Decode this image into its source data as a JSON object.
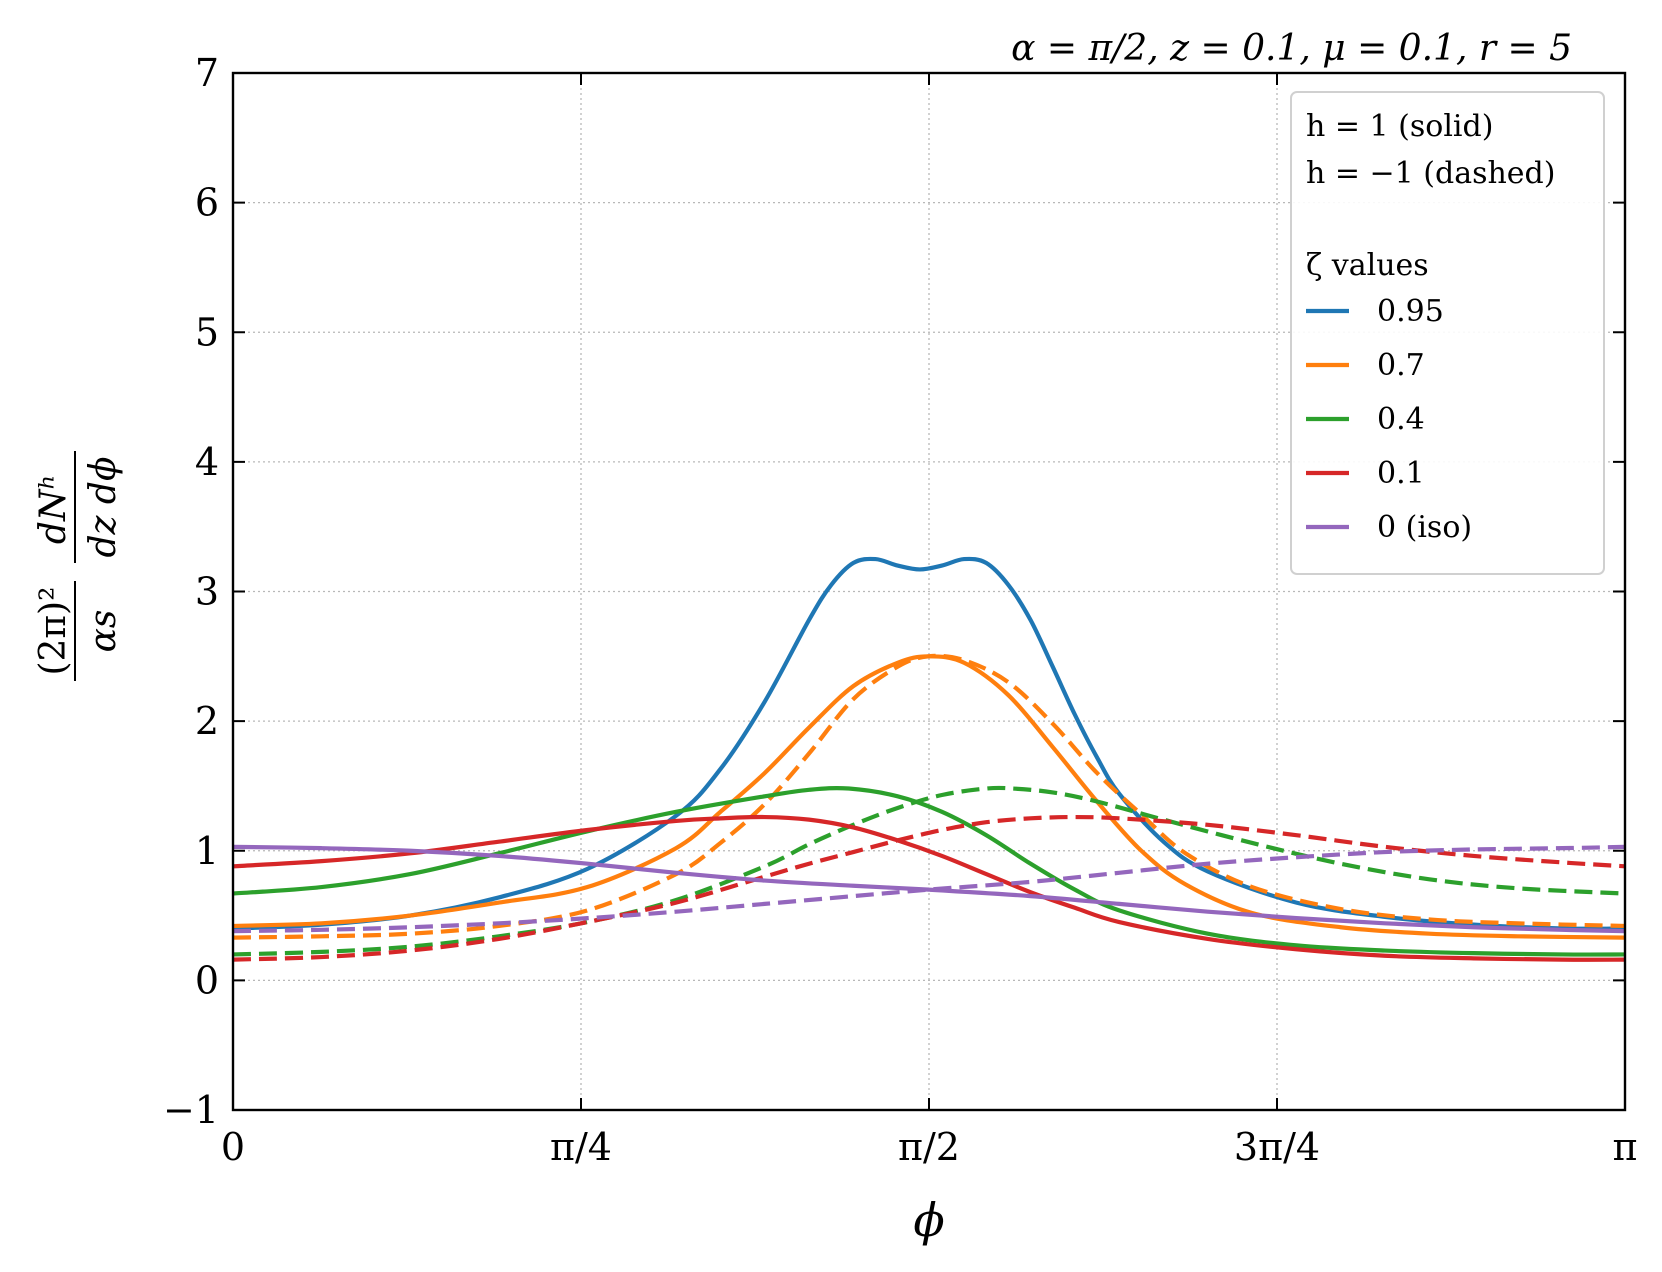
{
  "chart_data": {
    "type": "line",
    "title": "α = π/2, z = 0.1, μ = 0.1, r = 5",
    "xlabel": "ϕ",
    "ylabel_numerator_left": "(2π)²",
    "ylabel_denominator_left": "αs",
    "ylabel_numerator_right": "dNʰ",
    "ylabel_denominator_right": "dz dϕ",
    "xlim": [
      0,
      3.14159
    ],
    "ylim": [
      -1,
      7
    ],
    "x_ticks": [
      {
        "value": 0,
        "label": "0"
      },
      {
        "value": 0.785398,
        "label": "π/4"
      },
      {
        "value": 1.570796,
        "label": "π/2"
      },
      {
        "value": 2.356194,
        "label": "3π/4"
      },
      {
        "value": 3.14159,
        "label": "π"
      }
    ],
    "y_ticks": [
      {
        "value": -1,
        "label": "−1"
      },
      {
        "value": 0,
        "label": "0"
      },
      {
        "value": 1,
        "label": "1"
      },
      {
        "value": 2,
        "label": "2"
      },
      {
        "value": 3,
        "label": "3"
      },
      {
        "value": 4,
        "label": "4"
      },
      {
        "value": 5,
        "label": "5"
      },
      {
        "value": 6,
        "label": "6"
      },
      {
        "value": 7,
        "label": "7"
      }
    ],
    "grid": true,
    "legend": {
      "placement": "top-right",
      "style_lines": [
        "h = 1 (solid)",
        "h = −1 (dashed)"
      ],
      "title": "ζ values",
      "entries": [
        {
          "label": "0.95",
          "color": "#1f77b4"
        },
        {
          "label": "0.7",
          "color": "#ff7f0e"
        },
        {
          "label": "0.4",
          "color": "#2ca02c"
        },
        {
          "label": "0.1",
          "color": "#d62728"
        },
        {
          "label": "0 (iso)",
          "color": "#9467bd"
        }
      ]
    },
    "series": [
      {
        "name": "ζ=0.95, h=1",
        "color": "#1f77b4",
        "dash": false,
        "x": [
          0,
          0.2,
          0.4,
          0.6,
          0.8,
          1.0,
          1.1,
          1.2,
          1.3,
          1.35,
          1.4,
          1.45,
          1.5,
          1.55,
          1.6,
          1.65,
          1.7,
          1.75,
          1.8,
          1.85,
          1.9,
          1.95,
          2.0,
          2.1,
          2.2,
          2.4,
          2.6,
          2.8,
          3.0,
          3.14159
        ],
        "y": [
          0.4,
          0.43,
          0.5,
          0.64,
          0.86,
          1.27,
          1.63,
          2.15,
          2.78,
          3.05,
          3.22,
          3.25,
          3.2,
          3.17,
          3.2,
          3.25,
          3.22,
          3.05,
          2.78,
          2.42,
          2.05,
          1.72,
          1.44,
          1.07,
          0.84,
          0.6,
          0.49,
          0.43,
          0.4,
          0.4
        ]
      },
      {
        "name": "ζ=0.7, h=1",
        "color": "#ff7f0e",
        "dash": false,
        "x": [
          0,
          0.2,
          0.4,
          0.6,
          0.8,
          1.0,
          1.1,
          1.2,
          1.3,
          1.4,
          1.5,
          1.57,
          1.65,
          1.75,
          1.85,
          1.95,
          2.05,
          2.15,
          2.3,
          2.5,
          2.7,
          2.9,
          3.14159
        ],
        "y": [
          0.42,
          0.44,
          0.5,
          0.6,
          0.72,
          1.02,
          1.3,
          1.6,
          1.95,
          2.27,
          2.45,
          2.5,
          2.45,
          2.2,
          1.8,
          1.38,
          1.0,
          0.74,
          0.52,
          0.41,
          0.36,
          0.34,
          0.33
        ]
      },
      {
        "name": "ζ=0.7, h=−1",
        "color": "#ff7f0e",
        "dash": true,
        "x": [
          0,
          0.2,
          0.4,
          0.6,
          0.8,
          1.0,
          1.1,
          1.2,
          1.3,
          1.4,
          1.5,
          1.57,
          1.65,
          1.75,
          1.85,
          1.95,
          2.05,
          2.15,
          2.3,
          2.5,
          2.7,
          2.9,
          3.14159
        ],
        "y": [
          0.33,
          0.34,
          0.36,
          0.42,
          0.54,
          0.82,
          1.06,
          1.36,
          1.75,
          2.17,
          2.42,
          2.5,
          2.47,
          2.3,
          1.98,
          1.6,
          1.28,
          0.98,
          0.72,
          0.55,
          0.47,
          0.44,
          0.42
        ]
      },
      {
        "name": "ζ=0.4, h=1",
        "color": "#2ca02c",
        "dash": false,
        "x": [
          0,
          0.2,
          0.4,
          0.6,
          0.8,
          1.0,
          1.2,
          1.3,
          1.39,
          1.5,
          1.6,
          1.7,
          1.8,
          1.9,
          2.0,
          2.2,
          2.4,
          2.6,
          2.8,
          3.0,
          3.14159
        ],
        "y": [
          0.67,
          0.72,
          0.82,
          0.98,
          1.15,
          1.3,
          1.42,
          1.47,
          1.48,
          1.42,
          1.3,
          1.12,
          0.9,
          0.7,
          0.54,
          0.36,
          0.27,
          0.23,
          0.21,
          0.2,
          0.2
        ]
      },
      {
        "name": "ζ=0.4, h=−1",
        "color": "#2ca02c",
        "dash": true,
        "x": [
          0,
          0.2,
          0.4,
          0.6,
          0.8,
          1.0,
          1.2,
          1.3,
          1.4,
          1.5,
          1.6,
          1.7,
          1.76,
          1.85,
          1.95,
          2.1,
          2.3,
          2.5,
          2.7,
          2.9,
          3.14159
        ],
        "y": [
          0.2,
          0.22,
          0.26,
          0.34,
          0.45,
          0.62,
          0.88,
          1.05,
          1.2,
          1.33,
          1.43,
          1.48,
          1.48,
          1.45,
          1.38,
          1.24,
          1.06,
          0.9,
          0.78,
          0.71,
          0.67
        ]
      },
      {
        "name": "ζ=0.1, h=1",
        "color": "#d62728",
        "dash": false,
        "x": [
          0,
          0.2,
          0.4,
          0.6,
          0.8,
          1.0,
          1.1,
          1.2,
          1.3,
          1.4,
          1.5,
          1.6,
          1.7,
          1.8,
          1.9,
          2.0,
          2.2,
          2.4,
          2.6,
          2.8,
          3.0,
          3.14159
        ],
        "y": [
          0.88,
          0.92,
          0.98,
          1.07,
          1.16,
          1.23,
          1.25,
          1.26,
          1.24,
          1.18,
          1.08,
          0.96,
          0.82,
          0.68,
          0.56,
          0.45,
          0.32,
          0.24,
          0.19,
          0.17,
          0.16,
          0.16
        ]
      },
      {
        "name": "ζ=0.1, h=−1",
        "color": "#d62728",
        "dash": true,
        "x": [
          0,
          0.2,
          0.4,
          0.6,
          0.8,
          1.0,
          1.2,
          1.3,
          1.4,
          1.5,
          1.6,
          1.7,
          1.8,
          1.9,
          2.0,
          2.2,
          2.4,
          2.6,
          2.8,
          3.0,
          3.14159
        ],
        "y": [
          0.16,
          0.18,
          0.23,
          0.32,
          0.45,
          0.6,
          0.8,
          0.9,
          0.99,
          1.08,
          1.16,
          1.22,
          1.25,
          1.26,
          1.25,
          1.2,
          1.12,
          1.03,
          0.96,
          0.91,
          0.88
        ]
      },
      {
        "name": "ζ=0 (iso), h=1",
        "color": "#9467bd",
        "dash": false,
        "x": [
          0,
          0.2,
          0.4,
          0.6,
          0.8,
          1.0,
          1.2,
          1.4,
          1.57,
          1.8,
          2.0,
          2.2,
          2.4,
          2.6,
          2.8,
          3.0,
          3.14159
        ],
        "y": [
          1.03,
          1.02,
          1.0,
          0.96,
          0.9,
          0.83,
          0.77,
          0.73,
          0.7,
          0.65,
          0.59,
          0.53,
          0.48,
          0.44,
          0.41,
          0.39,
          0.38
        ]
      },
      {
        "name": "ζ=0 (iso), h=−1",
        "color": "#9467bd",
        "dash": true,
        "x": [
          0,
          0.2,
          0.4,
          0.6,
          0.8,
          1.0,
          1.2,
          1.4,
          1.57,
          1.8,
          2.0,
          2.2,
          2.4,
          2.6,
          2.8,
          3.0,
          3.14159
        ],
        "y": [
          0.38,
          0.39,
          0.41,
          0.44,
          0.48,
          0.53,
          0.59,
          0.65,
          0.7,
          0.76,
          0.83,
          0.9,
          0.95,
          0.99,
          1.01,
          1.02,
          1.03
        ]
      }
    ]
  }
}
